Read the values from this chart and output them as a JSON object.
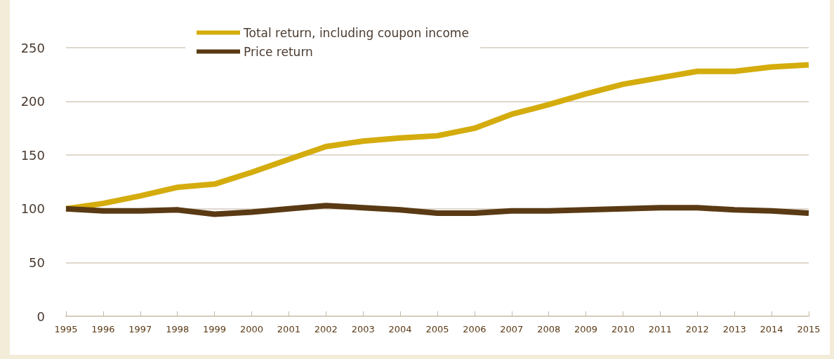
{
  "chart_data": {
    "type": "line",
    "categories": [
      "1995",
      "1996",
      "1997",
      "1998",
      "1999",
      "2000",
      "2001",
      "2002",
      "2003",
      "2004",
      "2005",
      "2006",
      "2007",
      "2008",
      "2009",
      "2010",
      "2011",
      "2012",
      "2013",
      "2014",
      "2015"
    ],
    "series": [
      {
        "name": "Total return, including coupon income",
        "color": "#d4ac0d",
        "values": [
          100,
          105,
          112,
          120,
          123,
          134,
          146,
          158,
          163,
          166,
          168,
          175,
          188,
          197,
          207,
          216,
          222,
          228,
          228,
          232,
          234
        ]
      },
      {
        "name": "Price return",
        "color": "#5a3a14",
        "values": [
          100,
          98,
          98,
          99,
          95,
          97,
          100,
          103,
          101,
          99,
          96,
          96,
          98,
          98,
          99,
          100,
          101,
          101,
          99,
          98,
          96
        ]
      }
    ],
    "ylim": [
      0,
      250
    ],
    "yticks": [
      0,
      50,
      100,
      150,
      200,
      250
    ],
    "grid": "y",
    "legend": "top",
    "marker": "none",
    "line_style": "solid"
  }
}
